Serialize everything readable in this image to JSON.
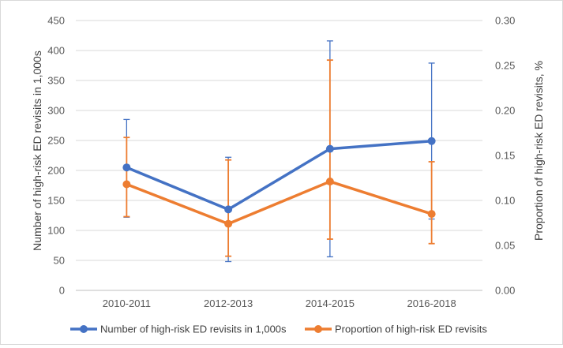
{
  "chart_data": {
    "type": "line",
    "categories": [
      "2010-2011",
      "2012-2013",
      "2014-2015",
      "2016-2018"
    ],
    "y_left": {
      "label": "Number of high-risk ED revisits in 1,000s",
      "range": [
        0,
        450
      ],
      "ticks": [
        0,
        50,
        100,
        150,
        200,
        250,
        300,
        350,
        400,
        450
      ]
    },
    "y_right": {
      "label": "Proportion of high-risk ED revisits, %",
      "range": [
        0,
        0.3
      ],
      "ticks": [
        "0.00",
        "0.05",
        "0.10",
        "0.15",
        "0.20",
        "0.25",
        "0.30"
      ]
    },
    "series": [
      {
        "name": "Number of high-risk ED revisits in 1,000s",
        "axis": "left",
        "color": "#4472C4",
        "values": [
          205,
          135,
          236,
          249
        ],
        "error_low": [
          122,
          48,
          56,
          119
        ],
        "error_high": [
          285,
          222,
          416,
          379
        ]
      },
      {
        "name": "Proportion of high-risk ED revisits",
        "axis": "right",
        "color": "#ED7D31",
        "values": [
          0.118,
          0.074,
          0.121,
          0.085
        ],
        "error_low": [
          0.082,
          0.038,
          0.057,
          0.052
        ],
        "error_high": [
          0.17,
          0.145,
          0.256,
          0.143
        ]
      }
    ],
    "gridlines": true,
    "legend_position": "bottom"
  }
}
